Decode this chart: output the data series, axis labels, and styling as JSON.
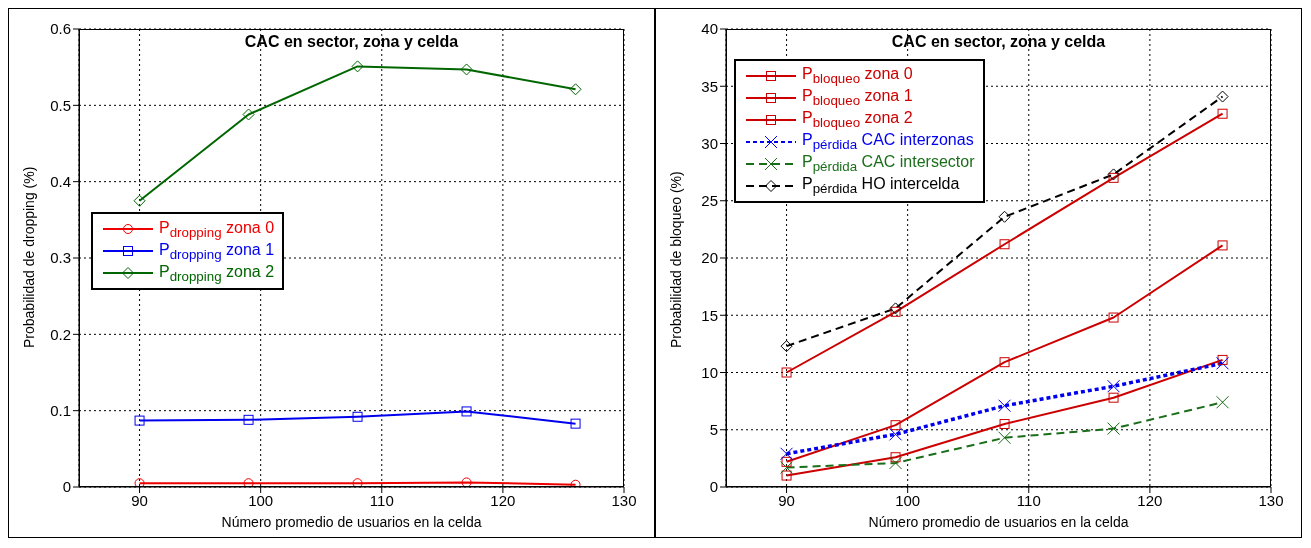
{
  "chart_data": [
    {
      "type": "line",
      "title": "CAC en sector, zona y celda",
      "xlabel": "Número promedio de usuarios en la celda",
      "ylabel": "Probabilidad de dropping (%)",
      "xlim": [
        85,
        130
      ],
      "xticks": [
        90,
        100,
        110,
        120,
        130
      ],
      "ylim": [
        0,
        0.6
      ],
      "yticks": [
        0,
        0.1,
        0.2,
        0.3,
        0.4,
        0.5,
        0.6
      ],
      "grid": true,
      "legend": "left",
      "x": [
        90,
        99,
        108,
        117,
        126
      ],
      "series": [
        {
          "name": "P$_{dropping}$ zona 0",
          "color": "#ee0000",
          "marker": "circle",
          "line_style": "solid",
          "values": [
            0.005,
            0.005,
            0.005,
            0.006,
            0.003
          ]
        },
        {
          "name": "P$_{dropping}$ zona 1",
          "color": "#0000ee",
          "marker": "square",
          "line_style": "solid",
          "values": [
            0.087,
            0.088,
            0.092,
            0.099,
            0.083
          ]
        },
        {
          "name": "P$_{dropping}$ zona 2",
          "color": "#006600",
          "marker": "diamond",
          "line_style": "solid",
          "values": [
            0.375,
            0.488,
            0.551,
            0.547,
            0.521
          ]
        }
      ]
    },
    {
      "type": "line",
      "title": "CAC en sector, zona y celda",
      "xlabel": "Número promedio de usuarios en la celda",
      "ylabel": "Probabilidad de bloqueo (%)",
      "xlim": [
        85,
        130
      ],
      "xticks": [
        90,
        100,
        110,
        120,
        130
      ],
      "ylim": [
        0,
        40
      ],
      "yticks": [
        0,
        5,
        10,
        15,
        20,
        25,
        30,
        35,
        40
      ],
      "grid": true,
      "legend": "top left",
      "x": [
        90,
        99,
        108,
        117,
        126
      ],
      "series": [
        {
          "name": "P$_{bloqueo}$ zona 0",
          "color": "#cc0000",
          "marker": "square",
          "line_style": "solid",
          "values": [
            1.0,
            2.6,
            5.5,
            7.8,
            11.1
          ]
        },
        {
          "name": "P$_{bloqueo}$ zona 1",
          "color": "#cc0000",
          "marker": "square",
          "line_style": "solid",
          "values": [
            2.2,
            5.4,
            10.9,
            14.8,
            21.1
          ]
        },
        {
          "name": "P$_{bloqueo}$ zona 2",
          "color": "#cc0000",
          "marker": "square",
          "line_style": "solid",
          "values": [
            10.0,
            15.3,
            21.2,
            27.0,
            32.6
          ]
        },
        {
          "name": "P$_{pérdida}$ CAC interzonas",
          "color": "#0000ee",
          "marker": "cross",
          "line_style": "dotted",
          "values": [
            2.9,
            4.6,
            7.1,
            8.8,
            10.8
          ]
        },
        {
          "name": "P$_{pérdida}$ CAC intersector",
          "color": "#1a6e1a",
          "marker": "cross",
          "line_style": "dashed",
          "values": [
            1.7,
            2.1,
            4.3,
            5.1,
            7.4
          ]
        },
        {
          "name": "P$_{pérdida}$ HO intercelda",
          "color": "#000000",
          "marker": "diamond",
          "line_style": "dashed",
          "values": [
            12.3,
            15.6,
            23.6,
            27.3,
            34.1
          ]
        }
      ]
    }
  ]
}
